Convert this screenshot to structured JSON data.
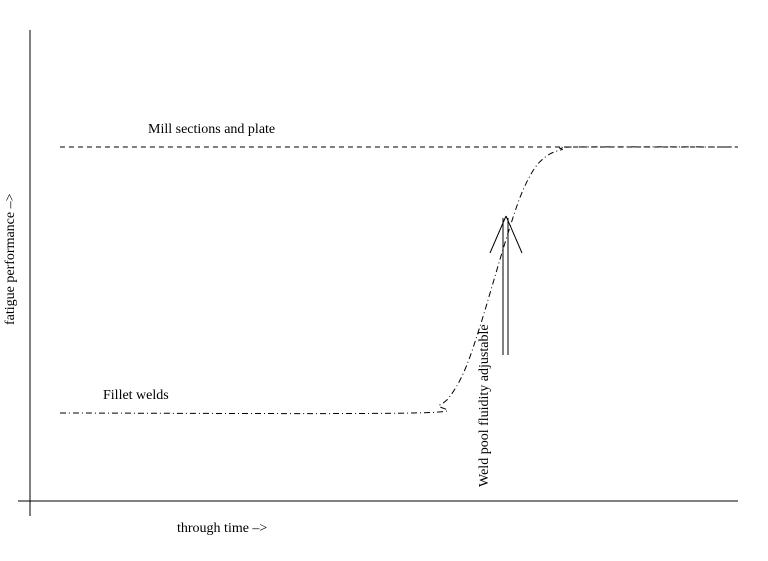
{
  "chart_data": {
    "type": "line",
    "xlabel": "through time –>",
    "ylabel": "fatigue performance –>",
    "annotations": {
      "upper_line_label": "Mill sections and plate",
      "lower_line_label": "Fillet welds",
      "arrow_label": "Weld pool fluidity adjustable"
    },
    "series": [
      {
        "name": "Mill sections and plate",
        "style": "dashed",
        "color": "#000000",
        "x": [
          0,
          100
        ],
        "y": [
          100,
          100
        ]
      },
      {
        "name": "Fillet welds",
        "style": "dash-dot",
        "color": "#000000",
        "x": [
          0,
          52,
          56,
          58,
          60,
          62,
          64,
          66,
          68,
          70,
          72,
          74,
          76,
          100
        ],
        "y": [
          0,
          0,
          3,
          8,
          18,
          33,
          50,
          67,
          82,
          92,
          97,
          99,
          100,
          100
        ]
      }
    ],
    "xlim": [
      0,
      100
    ],
    "ylim": [
      0,
      100
    ],
    "grid": false
  }
}
